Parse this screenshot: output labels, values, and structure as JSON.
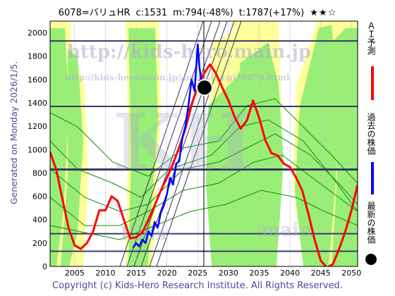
{
  "header": {
    "ticker": "6078=バリュHR",
    "close": "c:1531",
    "min": "m:794(-48%)",
    "target": "t:1787(+17%)",
    "stars": "★★☆"
  },
  "generated_label": "Generated on Monday 2026/1/5.",
  "copyright": "Copyright (c) Kids-Hero Research Institute. All Rights Reserved.",
  "watermarks": {
    "url": "http://kids-hero.main.jp",
    "url2": "http://kids-hero.main.jp/analysis.cgi?6078.html",
    "kh": "KH",
    "kids": "Kids",
    "main": "main"
  },
  "legend": [
    {
      "label": "ＡＩ予測",
      "color": "#ff0000"
    },
    {
      "label": "過去の株価",
      "color": "#0000ff"
    },
    {
      "label": "最新の株価",
      "color": "#000000"
    }
  ],
  "colors": {
    "band_yellow": "#ffff99",
    "band_green": "#99ee77",
    "grid": "#3a3a66",
    "ai": "#ff0000",
    "past": "#0000ff",
    "latest": "#000000"
  },
  "chart_data": {
    "type": "line",
    "xlim": [
      2001,
      2051
    ],
    "ylim": [
      0,
      2100
    ],
    "x_ticks": [
      2005,
      2010,
      2015,
      2020,
      2025,
      2030,
      2035,
      2040,
      2045,
      2050
    ],
    "y_ticks": [
      0,
      200,
      400,
      600,
      800,
      1000,
      1200,
      1400,
      1600,
      1800,
      2000
    ],
    "hlines": [
      1930,
      1370,
      830,
      280,
      130
    ],
    "vline": 2026,
    "latest_point": {
      "x": 2026.1,
      "y": 1531
    },
    "series": [
      {
        "name": "ＡＩ予測",
        "color": "#ff0000",
        "x": [
          2001,
          2002,
          2003,
          2004,
          2005,
          2006,
          2007,
          2008,
          2009,
          2010,
          2011,
          2012,
          2013,
          2014,
          2015,
          2016,
          2017,
          2018,
          2019,
          2020,
          2021,
          2022,
          2023,
          2024,
          2025,
          2026,
          2027,
          2028,
          2029,
          2030,
          2031,
          2032,
          2033,
          2034,
          2035,
          2036,
          2037,
          2038,
          2039,
          2040,
          2041,
          2042,
          2043,
          2044,
          2045,
          2046,
          2047,
          2048,
          2049,
          2050,
          2051
        ],
        "y": [
          980,
          830,
          580,
          330,
          180,
          150,
          200,
          300,
          480,
          480,
          600,
          560,
          400,
          240,
          250,
          290,
          400,
          520,
          650,
          760,
          880,
          1020,
          1180,
          1380,
          1540,
          1650,
          1730,
          1650,
          1530,
          1420,
          1280,
          1180,
          1250,
          1420,
          1270,
          1080,
          970,
          950,
          880,
          850,
          760,
          650,
          450,
          230,
          50,
          -10,
          20,
          150,
          300,
          480,
          700
        ]
      },
      {
        "name": "過去の株価",
        "color": "#0000ff",
        "x": [
          2014.5,
          2015,
          2015.5,
          2016,
          2016.5,
          2017,
          2017.5,
          2018,
          2018.5,
          2019,
          2019.5,
          2020,
          2020.5,
          2021,
          2021.5,
          2022,
          2022.5,
          2023,
          2023.5,
          2024,
          2024.5,
          2025,
          2025.3,
          2025.7,
          2026
        ],
        "y": [
          160,
          200,
          170,
          230,
          200,
          300,
          260,
          380,
          330,
          460,
          520,
          620,
          760,
          700,
          880,
          900,
          1100,
          1200,
          1380,
          1600,
          1500,
          1900,
          1700,
          1550,
          1531
        ]
      }
    ]
  }
}
